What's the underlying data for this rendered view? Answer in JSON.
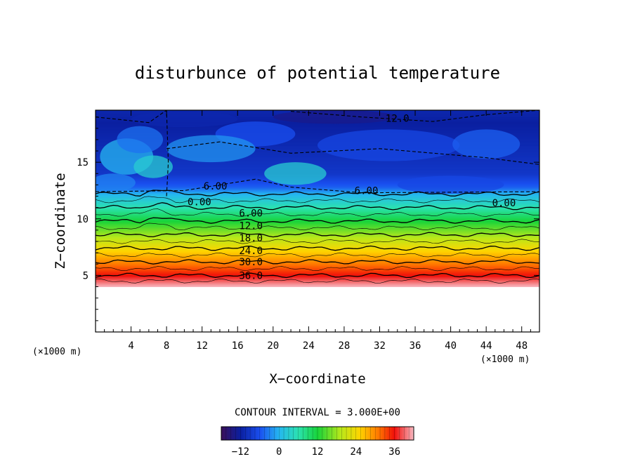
{
  "chart_data": {
    "type": "heatmap",
    "title": "disturbunce of potential temperature",
    "xlabel": "X−coordinate",
    "ylabel": "Z−coordinate",
    "x_unit": "(×1000 m)",
    "z_unit": "(×1000 m)",
    "xlim": [
      0,
      50
    ],
    "ylim": [
      0,
      19.6
    ],
    "x_ticks": [
      "4",
      "8",
      "12",
      "16",
      "20",
      "24",
      "28",
      "32",
      "36",
      "40",
      "44",
      "48"
    ],
    "x_tick_values": [
      4,
      8,
      12,
      16,
      20,
      24,
      28,
      32,
      36,
      40,
      44,
      48
    ],
    "y_ticks": [
      "5",
      "10",
      "15"
    ],
    "y_tick_values": [
      5,
      10,
      15
    ],
    "contour_interval": "CONTOUR INTERVAL = 3.000E+00",
    "contour_interval_value": 3.0,
    "colorbar": {
      "ticks": [
        "−12",
        "0",
        "12",
        "24",
        "36"
      ],
      "tick_values": [
        -12,
        0,
        12,
        24,
        36
      ],
      "range": [
        -18,
        42
      ]
    },
    "field_profile": {
      "z": [
        4.0,
        4.5,
        5.0,
        5.6,
        6.2,
        6.8,
        7.4,
        8.0,
        8.6,
        9.2,
        9.8,
        10.4,
        11.0,
        11.6,
        12.2,
        12.8,
        14.0,
        15.5,
        17.0,
        18.5,
        19.6
      ],
      "value": [
        42,
        39,
        36,
        33,
        30,
        27,
        24,
        21,
        18,
        15,
        12,
        9,
        6,
        3,
        0,
        -5,
        -9,
        -10,
        -11,
        -12,
        -11
      ]
    },
    "contour_labels": [
      {
        "text": "12.0",
        "x": 34.0,
        "z": 18.9
      },
      {
        "text": "6.00",
        "x": 13.5,
        "z": 12.9
      },
      {
        "text": "6.00",
        "x": 30.5,
        "z": 12.5
      },
      {
        "text": "0.00",
        "x": 11.7,
        "z": 11.5
      },
      {
        "text": "0.00",
        "x": 46.0,
        "z": 11.4
      },
      {
        "text": "6.00",
        "x": 17.5,
        "z": 10.5
      },
      {
        "text": "12.0",
        "x": 17.5,
        "z": 9.4
      },
      {
        "text": "18.0",
        "x": 17.5,
        "z": 8.3
      },
      {
        "text": "24.0",
        "x": 17.5,
        "z": 7.2
      },
      {
        "text": "30.0",
        "x": 17.5,
        "z": 6.2
      },
      {
        "text": "36.0",
        "x": 17.5,
        "z": 5.0
      }
    ]
  }
}
